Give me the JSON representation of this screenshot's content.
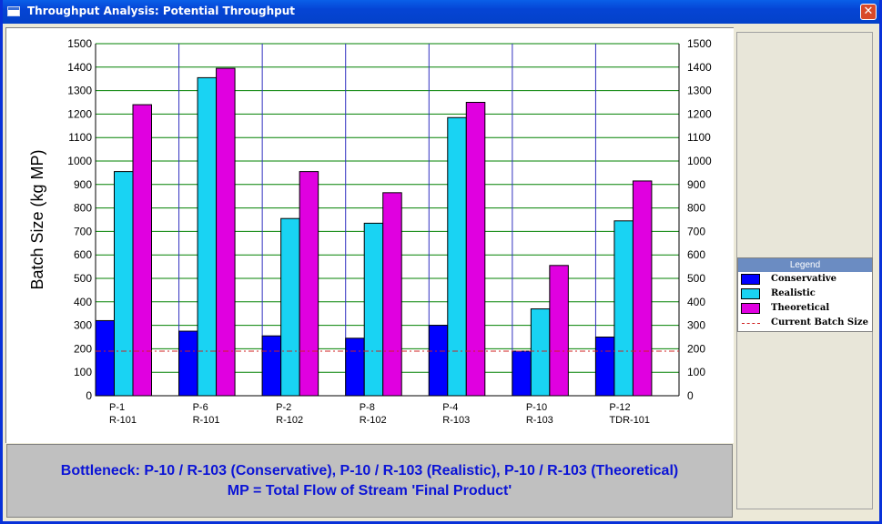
{
  "window": {
    "title": "Throughput Analysis: Potential Throughput",
    "close_label": "✕"
  },
  "chart_data": {
    "type": "bar",
    "ylabel": "Batch Size (kg MP)",
    "ylim": [
      0,
      1500
    ],
    "ytick_step": 100,
    "grid": true,
    "legend_position": "right",
    "categories": [
      [
        "P-1",
        "R-101"
      ],
      [
        "P-6",
        "R-101"
      ],
      [
        "P-2",
        "R-102"
      ],
      [
        "P-8",
        "R-102"
      ],
      [
        "P-4",
        "R-103"
      ],
      [
        "P-10",
        "R-103"
      ],
      [
        "P-12",
        "TDR-101"
      ]
    ],
    "series": [
      {
        "name": "Conservative",
        "color": "#0000ff",
        "values": [
          320,
          275,
          255,
          245,
          300,
          190,
          250
        ]
      },
      {
        "name": "Realistic",
        "color": "#19d3f3",
        "values": [
          955,
          1355,
          755,
          735,
          1185,
          370,
          745
        ]
      },
      {
        "name": "Theoretical",
        "color": "#e000e0",
        "values": [
          1240,
          1395,
          955,
          865,
          1250,
          555,
          915
        ]
      }
    ],
    "reference_line": {
      "name": "Current Batch Size",
      "value": 190,
      "color": "#d02020"
    }
  },
  "legend": {
    "title": "Legend"
  },
  "status": {
    "line1": "Bottleneck:  P-10 / R-103 (Conservative),  P-10 / R-103 (Realistic),  P-10 / R-103 (Theoretical)",
    "line2": "MP = Total Flow of Stream 'Final Product'"
  }
}
